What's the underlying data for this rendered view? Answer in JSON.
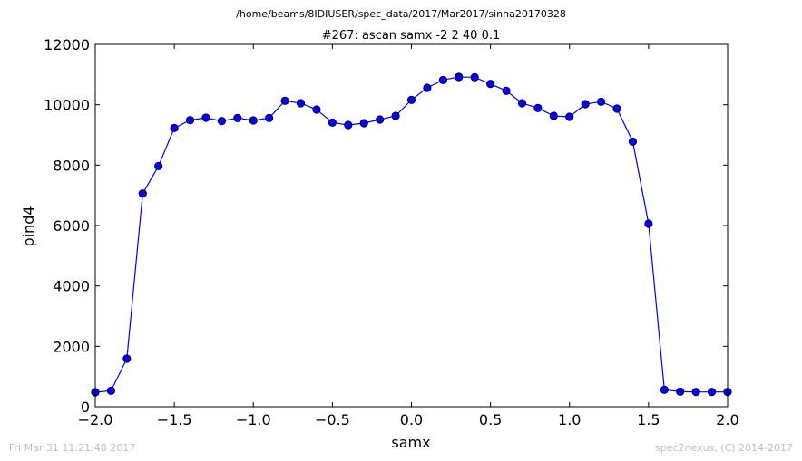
{
  "page": {
    "suptitle": "/home/beams/8IDIUSER/spec_data/2017/Mar2017/sinha20170328",
    "timestamp": "Fri Mar 31 11:21:48 2017",
    "credit": "spec2nexus, (C) 2014-2017"
  },
  "chart_data": {
    "type": "line",
    "title": "#267: ascan  samx -2 2  40 0.1",
    "xlabel": "samx",
    "ylabel": "pind4",
    "xlim": [
      -2.0,
      2.0
    ],
    "ylim": [
      0,
      12000
    ],
    "xticks": [
      -2.0,
      -1.5,
      -1.0,
      -0.5,
      0.0,
      0.5,
      1.0,
      1.5,
      2.0
    ],
    "xtick_labels": [
      "−2.0",
      "−1.5",
      "−1.0",
      "−0.5",
      "0.0",
      "0.5",
      "1.0",
      "1.5",
      "2.0"
    ],
    "yticks": [
      0,
      2000,
      4000,
      6000,
      8000,
      10000,
      12000
    ],
    "ytick_labels": [
      "0",
      "2000",
      "4000",
      "6000",
      "8000",
      "10000",
      "12000"
    ],
    "grid": false,
    "series": [
      {
        "color": "#0000ff",
        "marker": "circle",
        "x": [
          -2.0,
          -1.9,
          -1.8,
          -1.7,
          -1.6,
          -1.5,
          -1.4,
          -1.3,
          -1.2,
          -1.1,
          -1.0,
          -0.9,
          -0.8,
          -0.7,
          -0.6,
          -0.5,
          -0.4,
          -0.3,
          -0.2,
          -0.1,
          0.0,
          0.1,
          0.2,
          0.3,
          0.4,
          0.5,
          0.6,
          0.7,
          0.8,
          0.9,
          1.0,
          1.1,
          1.2,
          1.3,
          1.4,
          1.5,
          1.6,
          1.7,
          1.8,
          1.9,
          2.0
        ],
        "y": [
          480,
          530,
          1590,
          7060,
          7970,
          9230,
          9490,
          9570,
          9460,
          9560,
          9480,
          9560,
          10130,
          10050,
          9840,
          9410,
          9330,
          9390,
          9510,
          9630,
          10160,
          10560,
          10820,
          10920,
          10910,
          10690,
          10460,
          10050,
          9890,
          9630,
          9600,
          10020,
          10100,
          9870,
          8780,
          6060,
          560,
          500,
          490,
          490,
          490
        ]
      }
    ]
  }
}
